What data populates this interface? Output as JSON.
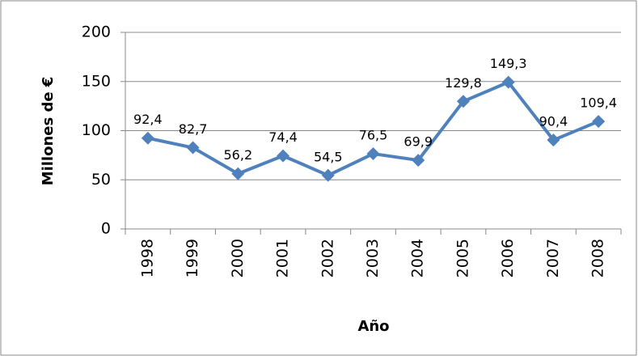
{
  "chart_data": {
    "type": "line",
    "categories": [
      "1998",
      "1999",
      "2000",
      "2001",
      "2002",
      "2003",
      "2004",
      "2005",
      "2006",
      "2007",
      "2008"
    ],
    "series": [
      {
        "color": "#4f81bd",
        "values": [
          92.4,
          82.7,
          56.2,
          74.4,
          54.5,
          76.5,
          69.9,
          129.8,
          149.3,
          90.4,
          109.4
        ],
        "value_labels": [
          "92,4",
          "82,7",
          "56,2",
          "74,4",
          "54,5",
          "76,5",
          "69,9",
          "129,8",
          "149,3",
          "90,4",
          "109,4"
        ]
      }
    ],
    "ylabel": "Millones de €",
    "xlabel": "Año",
    "ylim": [
      0,
      200
    ],
    "yticks": [
      0,
      50,
      100,
      150,
      200
    ],
    "grid": true
  }
}
